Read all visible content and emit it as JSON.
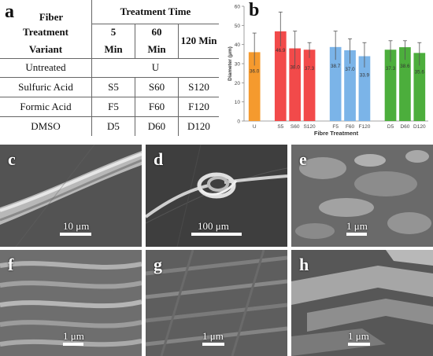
{
  "table": {
    "panel_label": "a",
    "header": {
      "col1": [
        "Fiber",
        "Treatment",
        "Variant"
      ],
      "group": "Treatment Time",
      "times": [
        [
          "5",
          "Min"
        ],
        [
          "60",
          "Min"
        ],
        [
          "120 Min"
        ]
      ]
    },
    "untreated": {
      "label": "Untreated",
      "value": "U"
    },
    "rows": [
      {
        "label": "Sulfuric Acid",
        "cells": [
          "S5",
          "S60",
          "S120"
        ]
      },
      {
        "label": "Formic Acid",
        "cells": [
          "F5",
          "F60",
          "F120"
        ]
      },
      {
        "label": "DMSO",
        "cells": [
          "D5",
          "D60",
          "D120"
        ]
      }
    ]
  },
  "chart_label": "b",
  "chart_data": {
    "type": "bar",
    "xlabel": "Fibre Treatment",
    "ylabel": "Diameter (μm)",
    "ylim": [
      0,
      60
    ],
    "yticks": [
      "0",
      "10",
      "20",
      "30",
      "40",
      "50",
      "60"
    ],
    "grid": false,
    "categories": [
      "U",
      "S5",
      "S60",
      "S120",
      "F5",
      "F60",
      "F120",
      "D5",
      "D60",
      "D120"
    ],
    "values": [
      36.0,
      46.9,
      38.0,
      37.3,
      38.7,
      37.0,
      33.9,
      37.3,
      38.6,
      35.6
    ],
    "value_labels": [
      "36.0",
      "46.9",
      "38.0",
      "37.3",
      "38.7",
      "37.0",
      "33.9",
      "37.3",
      "38.6",
      "35.6"
    ],
    "error_high": [
      46,
      57,
      47,
      41,
      47,
      43,
      41,
      42,
      42,
      41
    ],
    "error_low": [
      29,
      39,
      29,
      33,
      32,
      30,
      28,
      31,
      32,
      29
    ],
    "groups": [
      0,
      1,
      1,
      1,
      2,
      2,
      2,
      3,
      3,
      3
    ],
    "colors": [
      "#f59a2e",
      "#f24a4a",
      "#f24a4a",
      "#f24a4a",
      "#7bb4e8",
      "#7bb4e8",
      "#7bb4e8",
      "#4cae3c",
      "#4cae3c",
      "#4cae3c"
    ]
  },
  "micrographs": [
    {
      "label": "c",
      "scale": "10 μm"
    },
    {
      "label": "d",
      "scale": "100 μm"
    },
    {
      "label": "e",
      "scale": "1 μm"
    },
    {
      "label": "f",
      "scale": "1 μm"
    },
    {
      "label": "g",
      "scale": "1 μm"
    },
    {
      "label": "h",
      "scale": "1 μm"
    }
  ]
}
